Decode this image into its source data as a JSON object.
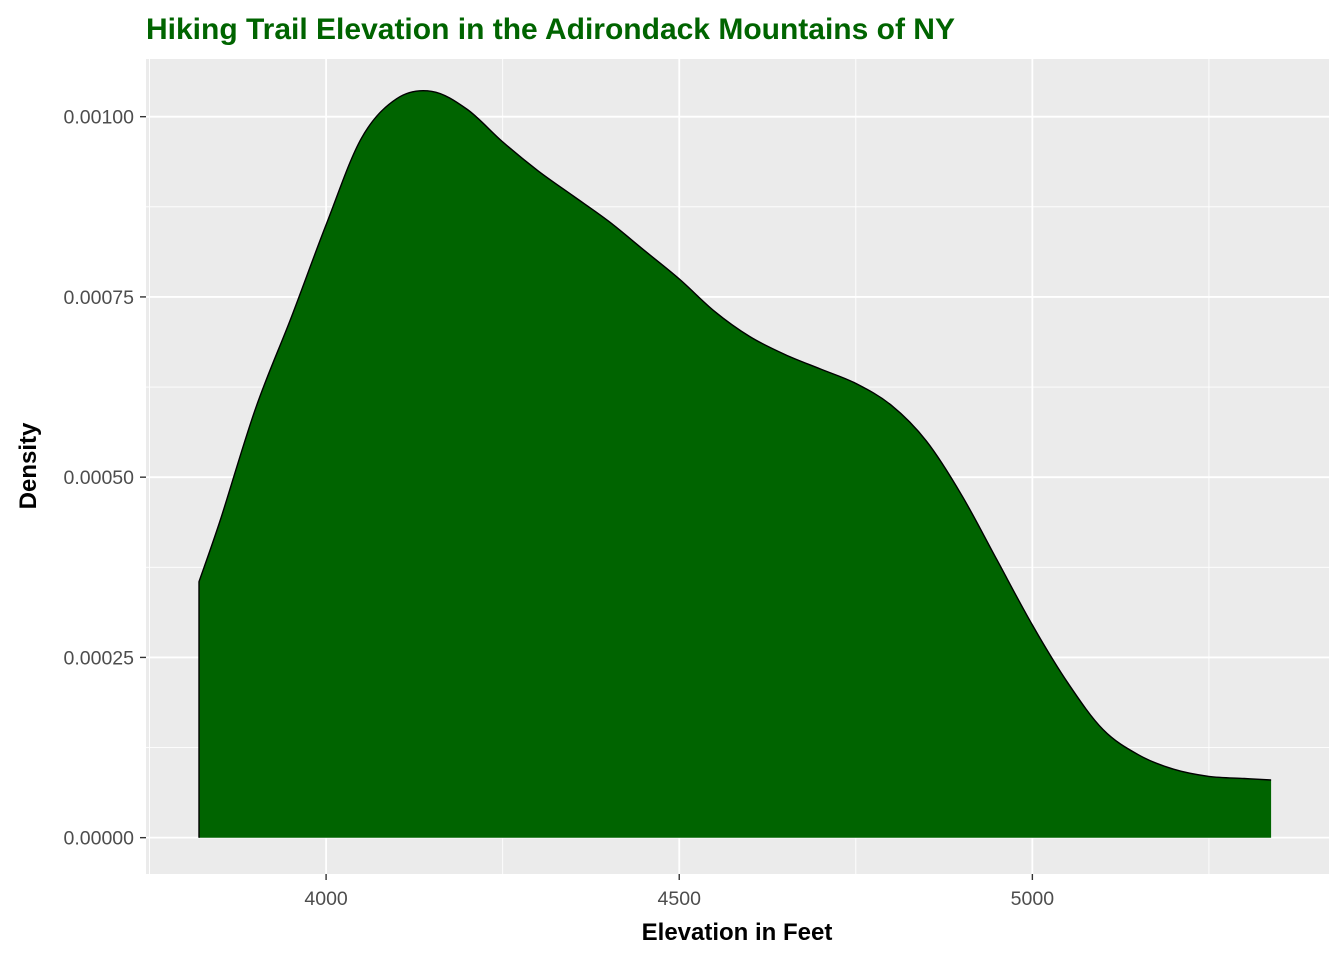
{
  "chart_data": {
    "type": "area",
    "title": "Hiking Trail Elevation in the Adirondack Mountains of NY",
    "xlabel": "Elevation in Feet",
    "ylabel": "Density",
    "xlim": [
      3745,
      5420
    ],
    "ylim": [
      -5.04e-05,
      0.00108
    ],
    "x_ticks": [
      4000,
      4500,
      5000
    ],
    "x_tick_labels": [
      "4000",
      "4500",
      "5000"
    ],
    "x_minor_ticks": [
      3750,
      4250,
      4750,
      5250
    ],
    "y_ticks": [
      0,
      0.00025,
      0.0005,
      0.00075,
      0.001
    ],
    "y_tick_labels": [
      "0.00000",
      "0.00025",
      "0.00050",
      "0.00075",
      "0.00100"
    ],
    "y_minor_ticks": [
      0.000125,
      0.000375,
      0.000625,
      0.000875
    ],
    "grid": true,
    "legend": "none",
    "colors": {
      "fill": "#006400",
      "outline": "#000000",
      "panel": "#EBEBEB",
      "gridline": "#FFFFFF",
      "title": "#006400"
    },
    "series": [
      {
        "x": [
          3820,
          3850,
          3900,
          3950,
          4000,
          4050,
          4100,
          4150,
          4200,
          4250,
          4300,
          4350,
          4400,
          4450,
          4500,
          4550,
          4600,
          4650,
          4700,
          4750,
          4800,
          4850,
          4900,
          4950,
          5000,
          5050,
          5100,
          5150,
          5200,
          5250,
          5300,
          5338
        ],
        "y": [
          0.000355,
          0.00044,
          0.000595,
          0.00072,
          0.00085,
          0.00097,
          0.001025,
          0.001035,
          0.00101,
          0.000965,
          0.000925,
          0.00089,
          0.000855,
          0.000815,
          0.000775,
          0.00073,
          0.000695,
          0.00067,
          0.00065,
          0.00063,
          0.0006,
          0.00055,
          0.000475,
          0.000385,
          0.000295,
          0.000215,
          0.00015,
          0.000115,
          9.5e-05,
          8.5e-05,
          8.2e-05,
          8e-05
        ]
      }
    ]
  }
}
